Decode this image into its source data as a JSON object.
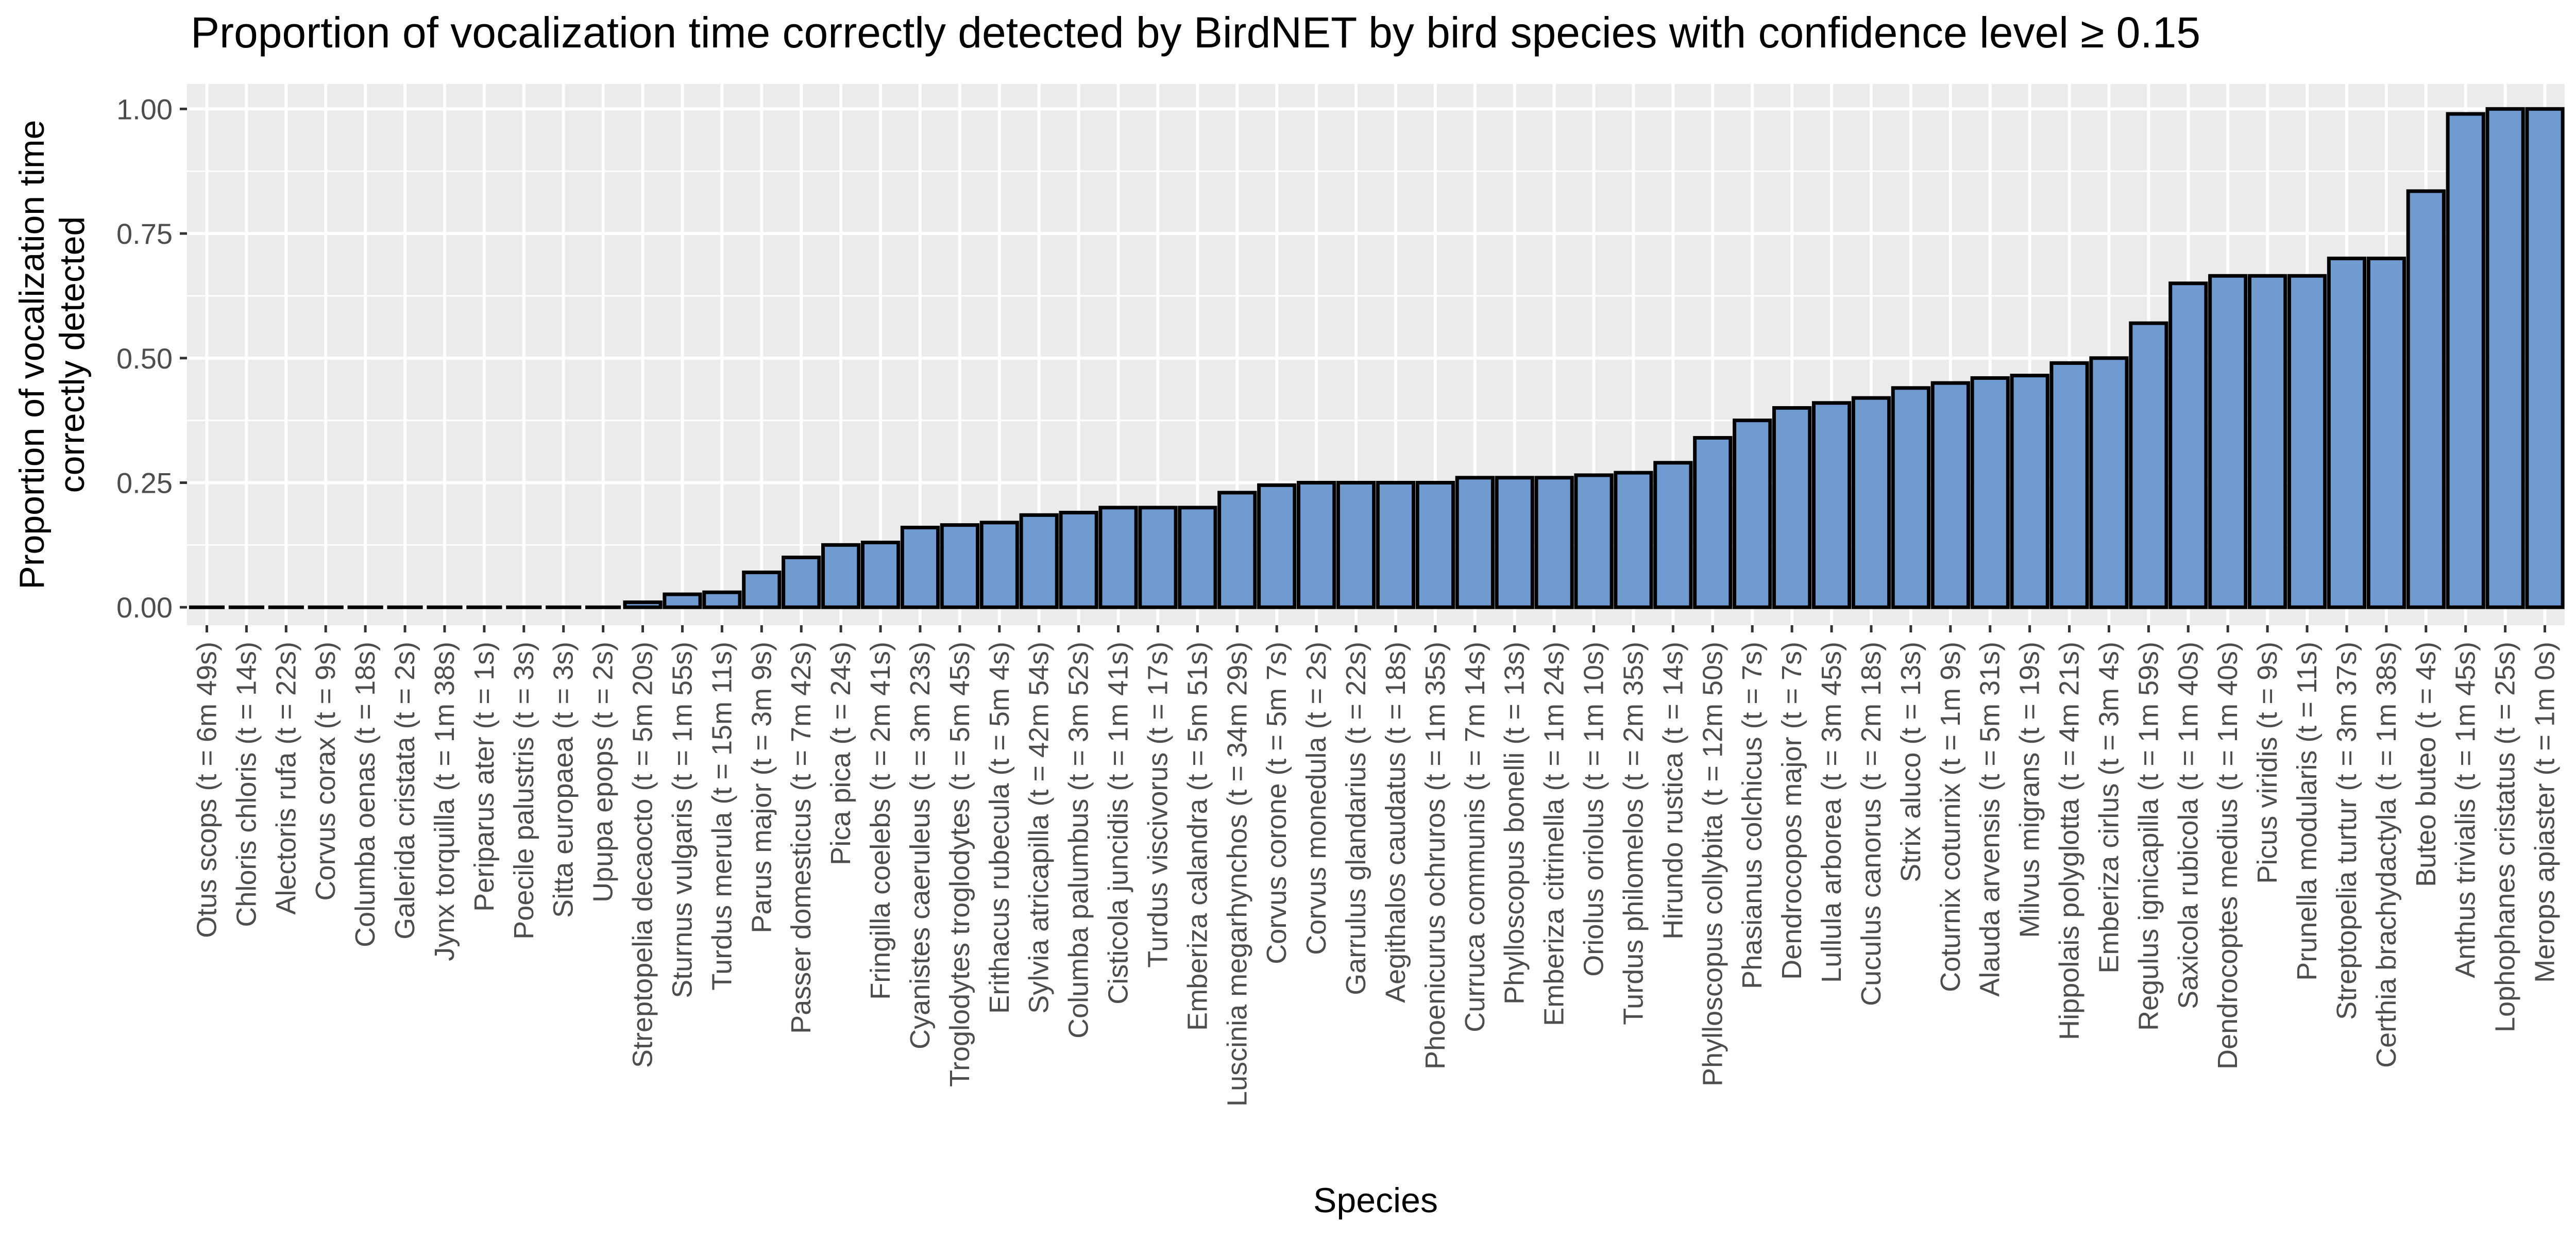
{
  "chart_data": {
    "type": "bar",
    "title": "Proportion of vocalization time correctly detected by BirdNET by bird species with confidence level ≥ 0.15",
    "xlabel": "Species",
    "ylabel": [
      "Proportion of vocalization time",
      "correctly detected"
    ],
    "ylim": [
      -0.036,
      1.05
    ],
    "yticks": [
      0.0,
      0.25,
      0.5,
      0.75,
      1.0
    ],
    "ytick_labels": [
      "0.00",
      "0.25",
      "0.50",
      "0.75",
      "1.00"
    ],
    "grid": true,
    "panel_background": "#ebebeb",
    "grid_color": "#ffffff",
    "bar_color": "#6f9bd1",
    "bar_outline": "#000000",
    "categories": [
      "Otus scops (t = 6m 49s)",
      "Chloris chloris (t = 14s)",
      "Alectoris rufa (t = 22s)",
      "Corvus corax (t = 9s)",
      "Columba oenas (t = 18s)",
      "Galerida cristata (t = 2s)",
      "Jynx torquilla (t = 1m 38s)",
      "Periparus ater (t = 1s)",
      "Poecile palustris (t = 3s)",
      "Sitta europaea (t = 3s)",
      "Upupa epops (t = 2s)",
      "Streptopelia decaocto (t = 5m 20s)",
      "Sturnus vulgaris (t = 1m 55s)",
      "Turdus merula (t = 15m 11s)",
      "Parus major (t = 3m 9s)",
      "Passer domesticus (t = 7m 42s)",
      "Pica pica (t = 24s)",
      "Fringilla coelebs (t = 2m 41s)",
      "Cyanistes caeruleus (t = 3m 23s)",
      "Troglodytes troglodytes (t = 5m 45s)",
      "Erithacus rubecula (t = 5m 4s)",
      "Sylvia atricapilla (t = 42m 54s)",
      "Columba palumbus (t = 3m 52s)",
      "Cisticola juncidis (t = 1m 41s)",
      "Turdus viscivorus (t = 17s)",
      "Emberiza calandra (t = 5m 51s)",
      "Luscinia megarhynchos (t = 34m 29s)",
      "Corvus corone (t = 5m 7s)",
      "Corvus monedula (t = 2s)",
      "Garrulus glandarius (t = 22s)",
      "Aegithalos caudatus (t = 18s)",
      "Phoenicurus ochruros (t = 1m 35s)",
      "Curruca communis (t = 7m 14s)",
      "Phylloscopus bonelli (t = 13s)",
      "Emberiza citrinella (t = 1m 24s)",
      "Oriolus oriolus (t = 1m 10s)",
      "Turdus philomelos (t = 2m 35s)",
      "Hirundo rustica (t = 14s)",
      "Phylloscopus collybita (t = 12m 50s)",
      "Phasianus colchicus (t = 7s)",
      "Dendrocopos major (t = 7s)",
      "Lullula arborea (t = 3m 45s)",
      "Cuculus canorus (t = 2m 18s)",
      "Strix aluco (t = 13s)",
      "Coturnix coturnix (t = 1m 9s)",
      "Alauda arvensis (t = 5m 31s)",
      "Milvus migrans (t = 19s)",
      "Hippolais polyglotta (t = 4m 21s)",
      "Emberiza cirlus (t = 3m 4s)",
      "Regulus ignicapilla (t = 1m 59s)",
      "Saxicola rubicola (t = 1m 40s)",
      "Dendrocoptes medius (t = 1m 40s)",
      "Picus viridis (t = 9s)",
      "Prunella modularis (t = 11s)",
      "Streptopelia turtur (t = 3m 37s)",
      "Certhia brachydactyla (t = 1m 38s)",
      "Buteo buteo (t = 4s)",
      "Anthus trivialis (t = 1m 45s)",
      "Lophophanes cristatus (t = 25s)",
      "Merops apiaster (t = 1m 0s)"
    ],
    "values": [
      0,
      0,
      0,
      0,
      0,
      0,
      0,
      0,
      0,
      0,
      0,
      0.01,
      0.026,
      0.03,
      0.07,
      0.1,
      0.125,
      0.13,
      0.16,
      0.165,
      0.17,
      0.185,
      0.19,
      0.2,
      0.2,
      0.2,
      0.23,
      0.245,
      0.25,
      0.25,
      0.25,
      0.25,
      0.26,
      0.26,
      0.26,
      0.265,
      0.27,
      0.29,
      0.34,
      0.375,
      0.4,
      0.41,
      0.42,
      0.44,
      0.45,
      0.46,
      0.465,
      0.49,
      0.5,
      0.57,
      0.65,
      0.665,
      0.665,
      0.665,
      0.7,
      0.7,
      0.835,
      0.99,
      1.0,
      1.0
    ]
  }
}
